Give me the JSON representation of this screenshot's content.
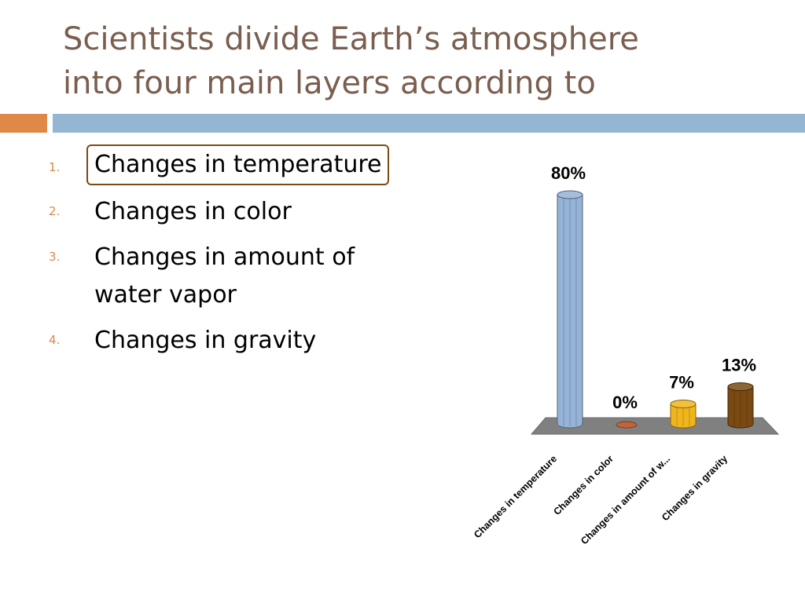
{
  "title": {
    "line1": "Scientists divide Earth’s atmosphere",
    "line2": "into four main layers according to"
  },
  "options": [
    {
      "number": "1.",
      "text": "Changes in temperature",
      "selected": true
    },
    {
      "number": "2.",
      "text": "Changes in color",
      "selected": false
    },
    {
      "number": "3.",
      "text": "Changes in amount of water vapor",
      "selected": false
    },
    {
      "number": "4.",
      "text": "Changes in gravity",
      "selected": false
    }
  ],
  "colors": {
    "title": "#7a5e4f",
    "accent_orange": "#df8847",
    "accent_blue": "#94b6d2",
    "selection_outline": "#7a4a14"
  },
  "chart_data": {
    "type": "bar",
    "categories": [
      "Changes in temperature",
      "Changes in color",
      "Changes in amount of w...",
      "Changes in gravity"
    ],
    "values": [
      80,
      0,
      7,
      13
    ],
    "value_labels": [
      "80%",
      "0%",
      "7%",
      "13%"
    ],
    "bar_colors": [
      "#95b3d7",
      "#c0653a",
      "#f0b51c",
      "#7a4a12"
    ],
    "floor_color": "#808080",
    "ylim": [
      0,
      80
    ],
    "grid": false,
    "legend": "none"
  }
}
